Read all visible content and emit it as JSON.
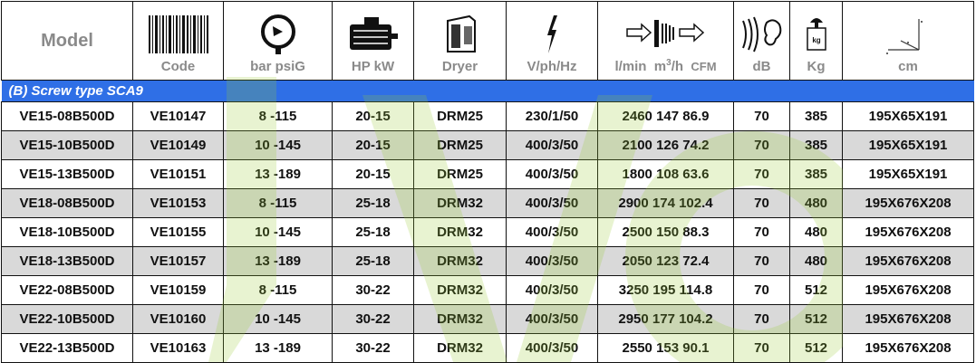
{
  "header": {
    "model": "Model",
    "code": "Code",
    "pressure": "bar psiG",
    "power": "HP kW",
    "dryer": "Dryer",
    "electric": "V/ph/Hz",
    "flow_lmin": "l/min",
    "flow_m3h": "m",
    "flow_sup": "3",
    "flow_m3h_tail": "/h",
    "flow_cfm": "CFM",
    "noise": "dB",
    "weight": "Kg",
    "weight_icon_text": "kg",
    "dims": "cm"
  },
  "section": "(B)  Screw type SCA9",
  "watermark_color": "#9acd32",
  "rows": [
    {
      "model": "VE15-08B500D",
      "code": "VE10147",
      "pressure": "8 -115",
      "power": "20-15",
      "dryer": "DRM25",
      "electric": "230/1/50",
      "flow": "2460  147  86.9",
      "db": "70",
      "kg": "385",
      "cm": "195X65X191"
    },
    {
      "model": "VE15-10B500D",
      "code": "VE10149",
      "pressure": "10 -145",
      "power": "20-15",
      "dryer": "DRM25",
      "electric": "400/3/50",
      "flow": "2100  126  74.2",
      "db": "70",
      "kg": "385",
      "cm": "195X65X191"
    },
    {
      "model": "VE15-13B500D",
      "code": "VE10151",
      "pressure": "13 -189",
      "power": "20-15",
      "dryer": "DRM25",
      "electric": "400/3/50",
      "flow": "1800  108  63.6",
      "db": "70",
      "kg": "385",
      "cm": "195X65X191"
    },
    {
      "model": "VE18-08B500D",
      "code": "VE10153",
      "pressure": "8 -115",
      "power": "25-18",
      "dryer": "DRM32",
      "electric": "400/3/50",
      "flow": "2900  174  102.4",
      "db": "70",
      "kg": "480",
      "cm": "195X676X208"
    },
    {
      "model": "VE18-10B500D",
      "code": "VE10155",
      "pressure": "10 -145",
      "power": "25-18",
      "dryer": "DRM32",
      "electric": "400/3/50",
      "flow": "2500  150  88.3",
      "db": "70",
      "kg": "480",
      "cm": "195X676X208"
    },
    {
      "model": "VE18-13B500D",
      "code": "VE10157",
      "pressure": "13 -189",
      "power": "25-18",
      "dryer": "DRM32",
      "electric": "400/3/50",
      "flow": "2050  123  72.4",
      "db": "70",
      "kg": "480",
      "cm": "195X676X208"
    },
    {
      "model": "VE22-08B500D",
      "code": "VE10159",
      "pressure": "8 -115",
      "power": "30-22",
      "dryer": "DRM32",
      "electric": "400/3/50",
      "flow": "3250  195  114.8",
      "db": "70",
      "kg": "512",
      "cm": "195X676X208"
    },
    {
      "model": "VE22-10B500D",
      "code": "VE10160",
      "pressure": "10 -145",
      "power": "30-22",
      "dryer": "DRM32",
      "electric": "400/3/50",
      "flow": "2950  177  104.2",
      "db": "70",
      "kg": "512",
      "cm": "195X676X208"
    },
    {
      "model": "VE22-13B500D",
      "code": "VE10163",
      "pressure": "13 -189",
      "power": "30-22",
      "dryer": "DRM32",
      "electric": "400/3/50",
      "flow": "2550  153  90.1",
      "db": "70",
      "kg": "512",
      "cm": "195X676X208"
    }
  ]
}
